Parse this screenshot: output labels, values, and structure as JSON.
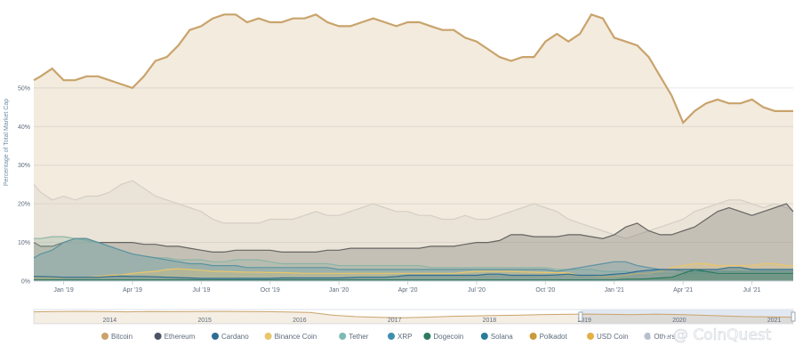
{
  "chart_data": {
    "type": "area",
    "title": "",
    "ylabel": "Percentage of Total Market Cap",
    "xlabel": "",
    "ylim": [
      0,
      70
    ],
    "y_ticks": [
      "0%",
      "10%",
      "20%",
      "30%",
      "40%",
      "50%"
    ],
    "x_tick_labels": [
      "Jan '19",
      "Apr '19",
      "Jul '19",
      "Oct '19",
      "Jan '20",
      "Apr '20",
      "Jul '20",
      "Oct '20",
      "Jan '21",
      "Apr '21",
      "Jul '21"
    ],
    "x_tick_positions": [
      0.5,
      3.5,
      6.5,
      9.5,
      12.5,
      15.5,
      18.5,
      21.5,
      24.5,
      27.5,
      30.5
    ],
    "x_range": [
      -0.8,
      32.3
    ],
    "x": [
      -0.8,
      -0.5,
      0,
      0.5,
      1,
      1.5,
      2,
      2.5,
      3,
      3.5,
      4,
      4.5,
      5,
      5.5,
      6,
      6.5,
      7,
      7.5,
      8,
      8.5,
      9,
      9.5,
      10,
      10.5,
      11,
      11.5,
      12,
      12.5,
      13,
      13.5,
      14,
      14.5,
      15,
      15.5,
      16,
      16.5,
      17,
      17.5,
      18,
      18.5,
      19,
      19.5,
      20,
      20.5,
      21,
      21.5,
      22,
      22.5,
      23,
      23.5,
      24,
      24.5,
      25,
      25.5,
      26,
      26.5,
      27,
      27.5,
      28,
      28.5,
      29,
      29.5,
      30,
      30.5,
      31,
      31.5,
      32,
      32.3
    ],
    "grid": true,
    "legend_position": "bottom",
    "series": [
      {
        "name": "Others",
        "color": "#d8dade",
        "values": [
          25,
          23,
          21,
          22,
          21,
          22,
          22,
          23,
          25,
          26,
          24,
          22,
          21,
          20,
          19,
          18,
          16,
          15,
          15,
          15,
          15,
          16,
          16,
          16,
          17,
          18,
          17,
          17,
          18,
          19,
          20,
          19,
          18,
          18,
          17,
          17,
          16,
          16,
          17,
          16,
          16,
          17,
          18,
          19,
          20,
          19,
          18,
          16,
          15,
          14,
          13,
          12,
          11,
          12,
          13,
          14,
          15,
          16,
          18,
          19,
          20,
          21,
          21,
          20,
          19,
          20,
          19,
          18
        ]
      },
      {
        "name": "Ethereum",
        "color": "#4a5462",
        "values": [
          10,
          9,
          9,
          10,
          11,
          11,
          10,
          10,
          10,
          10,
          9.5,
          9.5,
          9,
          9,
          8.5,
          8,
          7.5,
          7.5,
          8,
          8,
          8,
          8,
          7.5,
          7.5,
          7.5,
          7.5,
          8,
          8,
          8.5,
          8.5,
          8.5,
          8.5,
          8.5,
          8.5,
          8.5,
          9,
          9,
          9,
          9.5,
          10,
          10,
          10.5,
          12,
          12,
          11.5,
          11.5,
          11.5,
          12,
          12,
          11.5,
          11,
          12,
          14,
          15,
          13,
          12,
          12,
          13,
          14,
          16,
          18,
          19,
          18,
          17,
          18,
          19,
          20,
          18
        ]
      },
      {
        "name": "Tether",
        "color": "#7cbab5",
        "values": [
          11,
          11,
          11.5,
          11.5,
          11,
          10.5,
          10,
          9,
          8,
          7,
          6.5,
          6,
          6,
          5.5,
          5.5,
          5.5,
          5,
          5,
          5.5,
          5.5,
          5.5,
          5,
          4.5,
          4.5,
          4.5,
          4.5,
          4.5,
          4,
          4,
          4,
          4,
          4,
          4,
          4,
          4,
          3.5,
          3.5,
          3.5,
          3.5,
          3.5,
          3.5,
          3.5,
          3.5,
          3.5,
          3.5,
          3.5,
          3,
          3,
          3,
          3,
          2.5,
          2.5,
          2.5,
          2,
          2,
          2,
          2,
          2,
          2,
          2,
          2.5,
          3,
          3,
          3,
          3,
          3,
          3,
          3
        ]
      },
      {
        "name": "XRP",
        "color": "#3d8fb0",
        "values": [
          6,
          7,
          8,
          10,
          11,
          11,
          10,
          9,
          8,
          7,
          6.5,
          6,
          5.5,
          5,
          4.5,
          4.5,
          4,
          4,
          4,
          3.5,
          3.5,
          3.5,
          3.5,
          3.5,
          3.5,
          3.5,
          3.5,
          3,
          3,
          3,
          3,
          3,
          3,
          3,
          3,
          3,
          3,
          3,
          3,
          3,
          3,
          3,
          3,
          3,
          3,
          3,
          2.5,
          3,
          3.5,
          4,
          4.5,
          5,
          5,
          4,
          3.5,
          3,
          3,
          2.5,
          2.5,
          2.5,
          2.5,
          2.5,
          2.5,
          2.5,
          2.5,
          2.5,
          2.5,
          2.5
        ]
      },
      {
        "name": "Bitcoin",
        "color": "#c9a36b",
        "values": [
          52,
          53,
          55,
          52,
          52,
          53,
          53,
          52,
          51,
          50,
          53,
          57,
          58,
          61,
          65,
          66,
          68,
          69,
          69,
          67,
          68,
          67,
          67,
          68,
          68,
          69,
          67,
          66,
          66,
          67,
          68,
          67,
          66,
          67,
          67,
          66,
          65,
          65,
          63,
          62,
          60,
          58,
          57,
          58,
          58,
          62,
          64,
          62,
          64,
          69,
          68,
          63,
          62,
          61,
          58,
          53,
          48,
          41,
          44,
          46,
          47,
          46,
          46,
          47,
          45,
          44,
          44,
          44
        ]
      },
      {
        "name": "Binance Coin",
        "color": "#e8c66b",
        "values": [
          0.8,
          0.8,
          0.8,
          0.9,
          1,
          1,
          1.2,
          1.5,
          1.6,
          2,
          2.3,
          2.5,
          3,
          3.2,
          3,
          2.8,
          2.5,
          2.5,
          2.4,
          2.3,
          2.3,
          2.2,
          2.2,
          2.1,
          2,
          2,
          2,
          2,
          2,
          2,
          2,
          2,
          2,
          2,
          2,
          2,
          2,
          2,
          2.3,
          2.5,
          2.5,
          2.5,
          2.5,
          2.4,
          2.3,
          2.2,
          2.2,
          2.1,
          1.5,
          1.4,
          1.2,
          1.2,
          1.5,
          2,
          2,
          2.5,
          3.5,
          4,
          4.5,
          4.5,
          4,
          4,
          4,
          4,
          4.5,
          4.5,
          4,
          4
        ]
      },
      {
        "name": "Cardano",
        "color": "#2f6e92",
        "values": [
          1.2,
          1.2,
          1.1,
          1,
          1,
          1,
          1,
          1.2,
          1.3,
          1.2,
          1.2,
          1.1,
          1,
          0.9,
          0.8,
          0.7,
          0.7,
          0.7,
          0.7,
          0.7,
          0.7,
          0.7,
          0.8,
          0.8,
          0.8,
          0.8,
          0.8,
          0.8,
          0.9,
          1,
          1,
          1,
          1.2,
          1.5,
          1.5,
          1.5,
          1.5,
          1.5,
          1.5,
          1.5,
          1.8,
          1.8,
          1.5,
          1.5,
          1.5,
          1.5,
          1.6,
          1.8,
          1.5,
          1.5,
          1.5,
          1.8,
          2,
          2.5,
          2.8,
          3,
          3,
          3,
          3,
          3,
          3,
          3.5,
          3.5,
          3,
          3,
          3,
          3,
          3
        ]
      },
      {
        "name": "Dogecoin",
        "color": "#2d7a5f",
        "values": [
          0.3,
          0.3,
          0.3,
          0.3,
          0.3,
          0.3,
          0.3,
          0.3,
          0.3,
          0.3,
          0.3,
          0.3,
          0.3,
          0.3,
          0.3,
          0.3,
          0.3,
          0.3,
          0.3,
          0.3,
          0.3,
          0.3,
          0.3,
          0.3,
          0.3,
          0.3,
          0.3,
          0.3,
          0.3,
          0.3,
          0.3,
          0.3,
          0.3,
          0.3,
          0.3,
          0.3,
          0.3,
          0.3,
          0.3,
          0.3,
          0.3,
          0.3,
          0.3,
          0.3,
          0.3,
          0.3,
          0.3,
          0.3,
          0.3,
          0.3,
          0.3,
          0.3,
          0.5,
          0.5,
          0.6,
          0.8,
          1,
          2,
          3,
          2.5,
          2,
          2,
          2,
          2,
          2,
          2,
          2,
          2
        ]
      }
    ],
    "legend": [
      {
        "name": "Bitcoin",
        "color": "#c9a36b"
      },
      {
        "name": "Ethereum",
        "color": "#4a5462"
      },
      {
        "name": "Cardano",
        "color": "#2f6e92"
      },
      {
        "name": "Binance Coin",
        "color": "#e8c66b"
      },
      {
        "name": "Tether",
        "color": "#7cbab5"
      },
      {
        "name": "XRP",
        "color": "#3d8fb0"
      },
      {
        "name": "Dogecoin",
        "color": "#2d7a5f"
      },
      {
        "name": "Solana",
        "color": "#2a7c98"
      },
      {
        "name": "Polkadot",
        "color": "#ca9a3a"
      },
      {
        "name": "USD Coin",
        "color": "#e3b044"
      },
      {
        "name": "Others",
        "color": "#b8bfcc"
      }
    ],
    "navigator": {
      "x_labels": [
        "2014",
        "2015",
        "2016",
        "2017",
        "2018",
        "2019",
        "2020",
        "2021"
      ],
      "values": [
        84,
        86,
        87,
        86,
        84,
        86,
        85,
        86,
        87,
        86,
        85,
        83,
        80,
        60,
        50,
        45,
        42,
        46,
        52,
        55,
        58,
        60,
        64,
        66,
        68,
        66,
        64,
        68,
        65,
        60,
        55,
        50,
        48,
        46
      ],
      "selected_range": [
        0.72,
        1.0
      ]
    }
  },
  "watermark": {
    "handle": "@ CoinQuest"
  },
  "ui": {
    "accent": "#c9a36b",
    "navigator_fill": "#dfe5f0"
  }
}
